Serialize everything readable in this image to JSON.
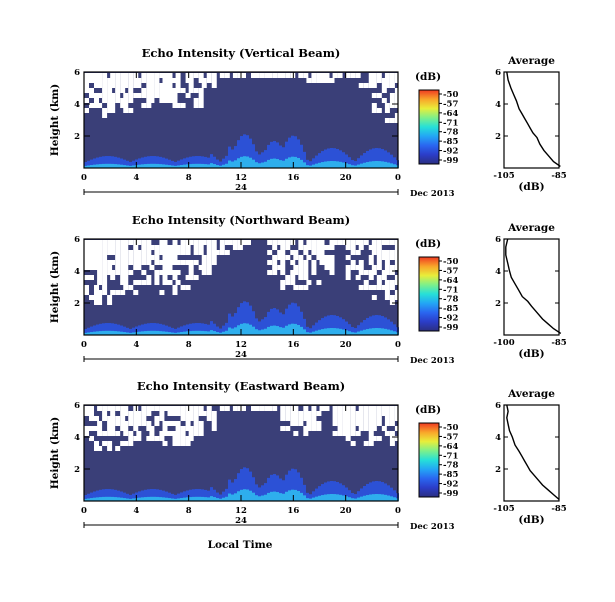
{
  "colors": {
    "background_field": "#3a3f78",
    "colorscale": [
      "#2b2f80",
      "#2b3dc8",
      "#2a66f0",
      "#23a6f5",
      "#26e0d8",
      "#7ef08a",
      "#e8ee3a",
      "#f9a52a",
      "#ef3a22"
    ]
  },
  "common": {
    "date_label": "Dec 2013",
    "xlabel": "Local Time",
    "x_ticks": [
      "0",
      "4",
      "8",
      "12",
      "16",
      "20",
      "0"
    ],
    "day_label": "24",
    "y_ticks": [
      "2",
      "4",
      "6"
    ],
    "ylabel": "Height (km)",
    "colorbar_unit": "(dB)",
    "colorbar_ticks": [
      "-50",
      "-57",
      "-64",
      "-71",
      "-78",
      "-85",
      "-92",
      "-99"
    ],
    "avg_title": "Average",
    "avg_xlabel": "(dB)",
    "avg_y_ticks": [
      "2",
      "4",
      "6"
    ]
  },
  "chart_data": [
    {
      "type": "heatmap",
      "title": "Echo Intensity (Vertical Beam)",
      "xlabel": "Local Time",
      "ylabel": "Height (km)",
      "xlim": [
        0,
        24
      ],
      "ylim": [
        0,
        6
      ],
      "colorbar": {
        "label": "(dB)",
        "range": [
          -99,
          -50
        ],
        "ticks": [
          -50,
          -57,
          -64,
          -71,
          -78,
          -85,
          -92,
          -99
        ]
      },
      "gaps_above_km": {
        "x": [
          0,
          1,
          2,
          3,
          4,
          5,
          6,
          7,
          8,
          9,
          10,
          11,
          12,
          13,
          14,
          15,
          16,
          17,
          18,
          19,
          20,
          21,
          22,
          23,
          24
        ],
        "y": [
          3.5,
          3.6,
          3.4,
          3.5,
          4.0,
          4.2,
          5.0,
          3.8,
          3.9,
          5.2,
          5.9,
          5.9,
          5.9,
          5.9,
          5.9,
          5.9,
          5.9,
          5.9,
          5.5,
          5.9,
          5.9,
          5.9,
          5.0,
          3.5,
          3.0
        ]
      },
      "profile": {
        "type": "line",
        "title": "Average",
        "xlabel": "(dB)",
        "x_ticks": [
          "-105",
          "-85"
        ],
        "xlim": [
          -105,
          -85
        ],
        "ylim": [
          0,
          6
        ],
        "x": [
          -84.5,
          -87,
          -89,
          -90.5,
          -92,
          -93,
          -94.5,
          -95.5,
          -96.5,
          -97.5,
          -98.5,
          -99.5,
          -100.5,
          -101.5,
          -102.5,
          -103.5,
          -104
        ],
        "y": [
          0.1,
          0.4,
          0.8,
          1.1,
          1.5,
          1.9,
          2.2,
          2.5,
          2.8,
          3.1,
          3.4,
          3.7,
          4.2,
          4.6,
          5.0,
          5.5,
          6.0
        ]
      }
    },
    {
      "type": "heatmap",
      "title": "Echo Intensity (Northward Beam)",
      "xlabel": "Local Time",
      "ylabel": "Height (km)",
      "xlim": [
        0,
        24
      ],
      "ylim": [
        0,
        6
      ],
      "colorbar": {
        "label": "(dB)",
        "range": [
          -99,
          -50
        ],
        "ticks": [
          -50,
          -57,
          -64,
          -71,
          -78,
          -85,
          -92,
          -99
        ]
      },
      "gaps_above_km": {
        "x": [
          0,
          1,
          2,
          3,
          4,
          5,
          6,
          7,
          8,
          9,
          10,
          11,
          12,
          13,
          14,
          15,
          16,
          17,
          18,
          19,
          20,
          21,
          22,
          23,
          24
        ],
        "y": [
          2.2,
          2.0,
          2.3,
          2.5,
          3.0,
          3.2,
          2.8,
          3.0,
          3.5,
          3.8,
          5.0,
          5.5,
          5.9,
          5.9,
          5.9,
          4.0,
          3.0,
          3.2,
          3.5,
          5.9,
          5.9,
          3.5,
          3.0,
          2.2,
          2.0
        ]
      },
      "profile": {
        "type": "line",
        "title": "Average",
        "xlabel": "(dB)",
        "x_ticks": [
          "-100",
          "-85"
        ],
        "xlim": [
          -100,
          -85
        ],
        "ylim": [
          0,
          6
        ],
        "x": [
          -84.5,
          -86.5,
          -88,
          -89.5,
          -91,
          -92.5,
          -93.5,
          -95,
          -96,
          -97,
          -98,
          -98.5,
          -99,
          -99.5,
          -99.5,
          -99
        ],
        "y": [
          0.1,
          0.4,
          0.7,
          1.0,
          1.4,
          1.8,
          2.1,
          2.4,
          2.8,
          3.2,
          3.6,
          4.0,
          4.5,
          5.0,
          5.5,
          6.0
        ]
      }
    },
    {
      "type": "heatmap",
      "title": "Echo Intensity (Eastward Beam)",
      "xlabel": "Local Time",
      "ylabel": "Height (km)",
      "xlim": [
        0,
        24
      ],
      "ylim": [
        0,
        6
      ],
      "colorbar": {
        "label": "(dB)",
        "range": [
          -99,
          -50
        ],
        "ticks": [
          -50,
          -57,
          -64,
          -71,
          -78,
          -85,
          -92,
          -99
        ]
      },
      "gaps_above_km": {
        "x": [
          0,
          1,
          2,
          3,
          4,
          5,
          6,
          7,
          8,
          9,
          10,
          11,
          12,
          13,
          14,
          15,
          16,
          17,
          18,
          19,
          20,
          21,
          22,
          23,
          24
        ],
        "y": [
          3.5,
          3.2,
          3.4,
          3.6,
          3.8,
          3.5,
          3.6,
          3.7,
          3.8,
          4.5,
          5.9,
          5.9,
          5.9,
          5.9,
          5.9,
          5.9,
          4.2,
          4.5,
          5.9,
          5.9,
          3.8,
          3.5,
          5.0,
          3.9,
          3.5
        ]
      },
      "profile": {
        "type": "line",
        "title": "Average",
        "xlabel": "(dB)",
        "x_ticks": [
          "-105",
          "-85"
        ],
        "xlim": [
          -105,
          -85
        ],
        "ylim": [
          0,
          6
        ],
        "x": [
          -85,
          -87,
          -89,
          -91,
          -92.5,
          -94,
          -95.5,
          -96.5,
          -97.5,
          -98.5,
          -99.5,
          -101,
          -102,
          -103,
          -103.5,
          -104,
          -103.5,
          -104
        ],
        "y": [
          0.1,
          0.4,
          0.7,
          1.0,
          1.3,
          1.6,
          1.9,
          2.2,
          2.5,
          2.8,
          3.1,
          3.5,
          4.0,
          4.4,
          4.8,
          5.2,
          5.6,
          6.0
        ]
      }
    }
  ]
}
